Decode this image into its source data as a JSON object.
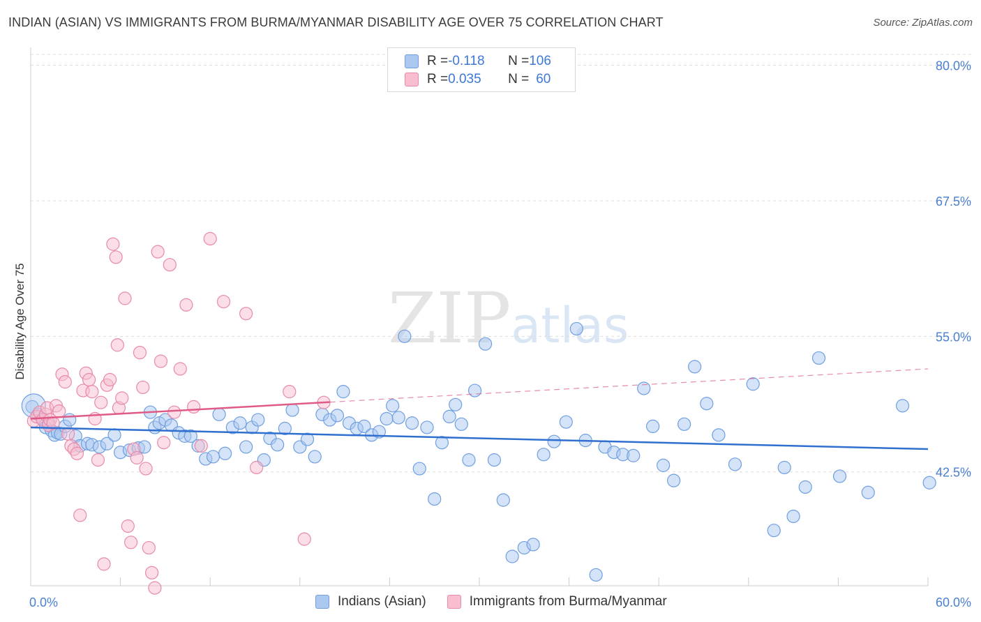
{
  "title": "INDIAN (ASIAN) VS IMMIGRANTS FROM BURMA/MYANMAR DISABILITY AGE OVER 75 CORRELATION CHART",
  "source": "Source: ZipAtlas.com",
  "watermark": {
    "zip": "ZIP",
    "atlas": "atlas"
  },
  "legend": {
    "rows": [
      {
        "r_label": "R = ",
        "r_value": "-0.118",
        "n_label": "N = ",
        "n_value": "106",
        "color": "#aac8f0",
        "border": "#6f9fe0"
      },
      {
        "r_label": "R = ",
        "r_value": "0.035",
        "n_label": "N = ",
        "n_value": "60",
        "color": "#f8bed0",
        "border": "#e88aa8"
      }
    ]
  },
  "bottom_legend": [
    {
      "label": "Indians (Asian)",
      "color": "#aac8f0",
      "border": "#6f9fe0"
    },
    {
      "label": "Immigrants from Burma/Myanmar",
      "color": "#f8bed0",
      "border": "#e88aa8"
    }
  ],
  "chart_data": {
    "type": "scatter",
    "title": "INDIAN (ASIAN) VS IMMIGRANTS FROM BURMA/MYANMAR DISABILITY AGE OVER 75 CORRELATION CHART",
    "xlabel": "",
    "ylabel": "Disability Age Over 75",
    "xlim": [
      0,
      60
    ],
    "ylim": [
      32,
      81
    ],
    "x_tick_labels": [
      {
        "value": 0,
        "label": "0.0%"
      },
      {
        "value": 60,
        "label": "60.0%"
      }
    ],
    "x_minor_ticks": [
      6,
      12,
      18,
      24,
      30,
      36,
      42,
      48,
      54,
      60
    ],
    "y_ticks": [
      {
        "value": 80.0,
        "label": "80.0%"
      },
      {
        "value": 67.5,
        "label": "67.5%"
      },
      {
        "value": 55.0,
        "label": "55.0%"
      },
      {
        "value": 42.5,
        "label": "42.5%"
      }
    ],
    "series": [
      {
        "name": "Indians (Asian)",
        "color": "#6f9fe0",
        "fill": "#aac8f0",
        "trend": {
          "x": [
            0,
            60
          ],
          "y": [
            46.6,
            44.6
          ],
          "color": "#2f6fd0",
          "dashed_from": null
        },
        "points": [
          [
            0.1,
            48.5
          ],
          [
            0.5,
            47.8
          ],
          [
            0.8,
            47.4
          ],
          [
            1.0,
            46.6
          ],
          [
            1.2,
            47.0
          ],
          [
            1.4,
            46.3
          ],
          [
            1.6,
            45.9
          ],
          [
            1.8,
            46.1
          ],
          [
            2.0,
            46.0
          ],
          [
            2.3,
            46.7
          ],
          [
            2.6,
            47.3
          ],
          [
            3.0,
            45.8
          ],
          [
            3.3,
            44.9
          ],
          [
            3.8,
            45.1
          ],
          [
            4.1,
            45.0
          ],
          [
            4.6,
            44.8
          ],
          [
            5.1,
            45.1
          ],
          [
            5.6,
            45.9
          ],
          [
            6.0,
            44.3
          ],
          [
            6.6,
            44.5
          ],
          [
            7.2,
            44.7
          ],
          [
            7.6,
            44.8
          ],
          [
            8.0,
            48.0
          ],
          [
            8.3,
            46.6
          ],
          [
            8.6,
            47.0
          ],
          [
            9.0,
            47.3
          ],
          [
            9.4,
            46.8
          ],
          [
            9.9,
            46.1
          ],
          [
            10.3,
            45.8
          ],
          [
            10.7,
            45.8
          ],
          [
            11.2,
            44.9
          ],
          [
            11.7,
            43.7
          ],
          [
            12.2,
            43.9
          ],
          [
            12.6,
            47.8
          ],
          [
            13.0,
            44.2
          ],
          [
            13.5,
            46.6
          ],
          [
            14.0,
            47.0
          ],
          [
            14.4,
            44.8
          ],
          [
            14.8,
            46.6
          ],
          [
            15.2,
            47.3
          ],
          [
            15.6,
            43.6
          ],
          [
            16.0,
            45.6
          ],
          [
            16.5,
            45.0
          ],
          [
            17.0,
            46.5
          ],
          [
            17.5,
            48.2
          ],
          [
            18.0,
            44.8
          ],
          [
            18.5,
            45.5
          ],
          [
            19.0,
            43.9
          ],
          [
            19.5,
            47.8
          ],
          [
            20.0,
            47.3
          ],
          [
            20.5,
            47.7
          ],
          [
            20.9,
            49.9
          ],
          [
            21.3,
            47.0
          ],
          [
            21.8,
            46.5
          ],
          [
            22.3,
            46.7
          ],
          [
            22.8,
            45.9
          ],
          [
            23.3,
            46.2
          ],
          [
            23.8,
            47.4
          ],
          [
            24.2,
            48.6
          ],
          [
            24.6,
            47.5
          ],
          [
            25.0,
            55.0
          ],
          [
            25.5,
            47.0
          ],
          [
            26.0,
            42.8
          ],
          [
            26.5,
            46.6
          ],
          [
            27.0,
            40.0
          ],
          [
            27.5,
            45.2
          ],
          [
            28.0,
            47.6
          ],
          [
            28.4,
            48.7
          ],
          [
            28.8,
            46.9
          ],
          [
            29.3,
            43.6
          ],
          [
            29.7,
            50.0
          ],
          [
            30.4,
            54.3
          ],
          [
            31.0,
            43.6
          ],
          [
            31.6,
            39.9
          ],
          [
            32.2,
            34.7
          ],
          [
            33.0,
            35.5
          ],
          [
            33.6,
            35.8
          ],
          [
            34.3,
            44.1
          ],
          [
            35.0,
            45.3
          ],
          [
            35.8,
            47.1
          ],
          [
            36.5,
            55.7
          ],
          [
            37.1,
            45.4
          ],
          [
            37.8,
            33.0
          ],
          [
            38.4,
            44.8
          ],
          [
            39.0,
            44.3
          ],
          [
            39.6,
            44.1
          ],
          [
            40.3,
            44.0
          ],
          [
            41.0,
            50.2
          ],
          [
            41.6,
            46.7
          ],
          [
            42.3,
            43.1
          ],
          [
            43.0,
            41.7
          ],
          [
            43.7,
            46.9
          ],
          [
            44.4,
            52.2
          ],
          [
            45.2,
            48.8
          ],
          [
            46.0,
            45.9
          ],
          [
            47.1,
            43.2
          ],
          [
            48.3,
            50.6
          ],
          [
            49.7,
            37.1
          ],
          [
            50.4,
            42.9
          ],
          [
            51.0,
            38.4
          ],
          [
            51.8,
            41.1
          ],
          [
            52.7,
            53.0
          ],
          [
            54.1,
            42.1
          ],
          [
            56.0,
            40.6
          ],
          [
            58.3,
            48.6
          ],
          [
            60.1,
            41.5
          ]
        ]
      },
      {
        "name": "Immigrants from Burma/Myanmar",
        "color": "#e88aa8",
        "fill": "#f8bed0",
        "trend": {
          "x": [
            0,
            60
          ],
          "y": [
            47.4,
            52.0
          ],
          "solid_until": 20.0,
          "color": "#e05a86",
          "dashed_from": 20.0
        },
        "points": [
          [
            0.2,
            47.2
          ],
          [
            0.4,
            47.6
          ],
          [
            0.6,
            48.0
          ],
          [
            0.8,
            47.3
          ],
          [
            1.0,
            47.8
          ],
          [
            1.1,
            48.4
          ],
          [
            1.2,
            46.8
          ],
          [
            1.3,
            47.3
          ],
          [
            1.5,
            47.0
          ],
          [
            1.7,
            48.6
          ],
          [
            1.9,
            48.1
          ],
          [
            2.1,
            51.5
          ],
          [
            2.3,
            50.8
          ],
          [
            2.5,
            46.0
          ],
          [
            2.7,
            44.9
          ],
          [
            2.9,
            44.6
          ],
          [
            3.1,
            44.2
          ],
          [
            3.3,
            38.5
          ],
          [
            3.5,
            50.0
          ],
          [
            3.7,
            51.6
          ],
          [
            3.9,
            51.0
          ],
          [
            4.1,
            49.9
          ],
          [
            4.3,
            47.4
          ],
          [
            4.5,
            43.6
          ],
          [
            4.7,
            48.9
          ],
          [
            4.9,
            34.0
          ],
          [
            5.1,
            50.5
          ],
          [
            5.3,
            51.0
          ],
          [
            5.5,
            63.5
          ],
          [
            5.7,
            62.3
          ],
          [
            5.8,
            54.2
          ],
          [
            5.9,
            48.4
          ],
          [
            6.1,
            49.3
          ],
          [
            6.3,
            58.5
          ],
          [
            6.5,
            37.5
          ],
          [
            6.7,
            36.0
          ],
          [
            6.9,
            44.6
          ],
          [
            7.1,
            43.8
          ],
          [
            7.3,
            53.5
          ],
          [
            7.5,
            50.3
          ],
          [
            7.7,
            42.8
          ],
          [
            7.9,
            35.5
          ],
          [
            8.1,
            33.2
          ],
          [
            8.3,
            31.8
          ],
          [
            8.5,
            62.8
          ],
          [
            8.7,
            52.7
          ],
          [
            8.9,
            45.2
          ],
          [
            9.3,
            61.6
          ],
          [
            9.6,
            48.0
          ],
          [
            10.0,
            52.0
          ],
          [
            10.4,
            57.9
          ],
          [
            10.9,
            48.5
          ],
          [
            11.4,
            44.9
          ],
          [
            12.0,
            64.0
          ],
          [
            12.9,
            58.2
          ],
          [
            14.4,
            57.1
          ],
          [
            15.1,
            42.9
          ],
          [
            17.3,
            49.9
          ],
          [
            18.3,
            36.3
          ],
          [
            19.6,
            48.9
          ]
        ]
      }
    ]
  }
}
